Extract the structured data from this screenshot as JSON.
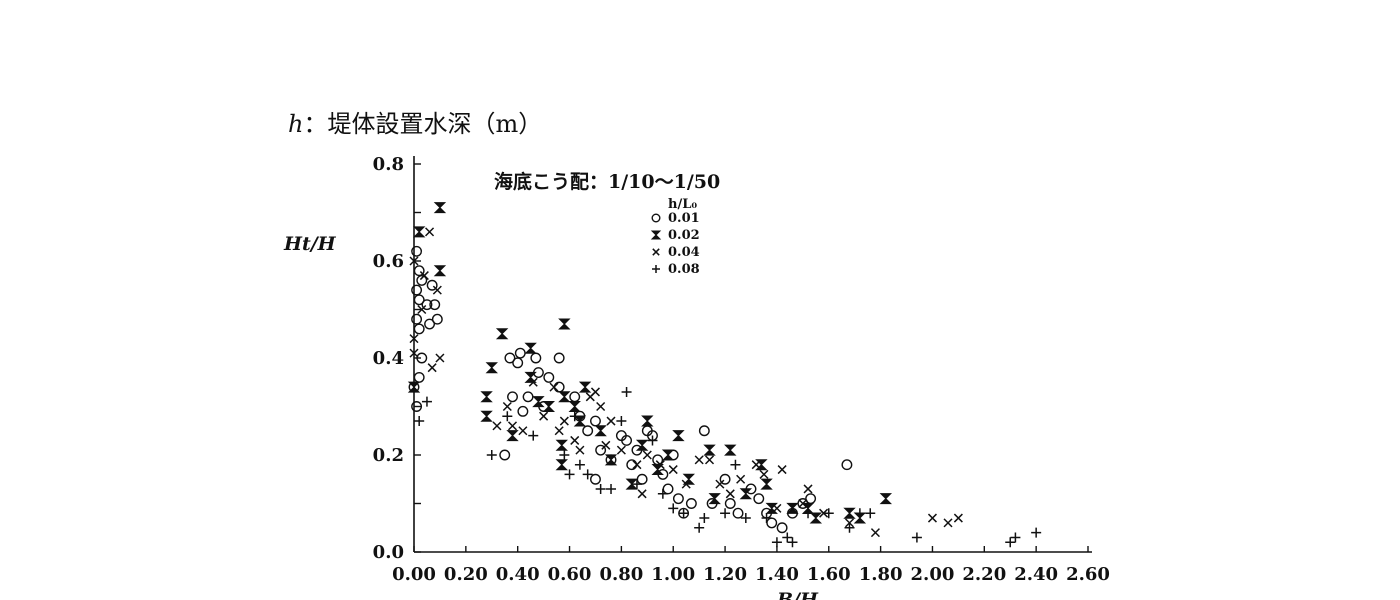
{
  "caption": "ℎ：堤体設置水深（m）",
  "chart_data": {
    "type": "scatter",
    "title": "",
    "ylabel": "Ht/H",
    "xlabel": "B/H",
    "xlim": [
      0,
      2.6
    ],
    "ylim": [
      0,
      0.8
    ],
    "x_ticks": [
      "0.00",
      "0.20",
      "0.40",
      "0.60",
      "0.80",
      "1.00",
      "1.20",
      "1.40",
      "1.60",
      "1.80",
      "2.00",
      "2.20",
      "2.40",
      "2.60"
    ],
    "y_ticks": [
      "0.0",
      "0.2",
      "0.4",
      "0.6",
      "0.8"
    ],
    "annotation": "海底こう配：1/10～1/50",
    "legend_title": "h/L₀",
    "legend_position": "top-center",
    "series": [
      {
        "name": "0.01",
        "marker": "circle",
        "points": [
          [
            0.01,
            0.62
          ],
          [
            0.02,
            0.58
          ],
          [
            0.01,
            0.54
          ],
          [
            0.03,
            0.56
          ],
          [
            0.02,
            0.52
          ],
          [
            0.05,
            0.51
          ],
          [
            0.01,
            0.48
          ],
          [
            0.02,
            0.46
          ],
          [
            0.07,
            0.55
          ],
          [
            0.08,
            0.51
          ],
          [
            0.09,
            0.48
          ],
          [
            0.06,
            0.47
          ],
          [
            0.03,
            0.4
          ],
          [
            0.02,
            0.36
          ],
          [
            0.01,
            0.3
          ],
          [
            0.0,
            0.34
          ],
          [
            0.35,
            0.2
          ],
          [
            0.37,
            0.4
          ],
          [
            0.41,
            0.41
          ],
          [
            0.4,
            0.39
          ],
          [
            0.38,
            0.32
          ],
          [
            0.42,
            0.29
          ],
          [
            0.44,
            0.32
          ],
          [
            0.47,
            0.4
          ],
          [
            0.48,
            0.37
          ],
          [
            0.52,
            0.36
          ],
          [
            0.5,
            0.3
          ],
          [
            0.56,
            0.4
          ],
          [
            0.56,
            0.34
          ],
          [
            0.62,
            0.32
          ],
          [
            0.64,
            0.28
          ],
          [
            0.67,
            0.25
          ],
          [
            0.7,
            0.27
          ],
          [
            0.72,
            0.21
          ],
          [
            0.7,
            0.15
          ],
          [
            0.76,
            0.19
          ],
          [
            0.8,
            0.24
          ],
          [
            0.82,
            0.23
          ],
          [
            0.84,
            0.18
          ],
          [
            0.86,
            0.21
          ],
          [
            0.88,
            0.15
          ],
          [
            0.9,
            0.25
          ],
          [
            0.92,
            0.24
          ],
          [
            0.94,
            0.19
          ],
          [
            0.96,
            0.16
          ],
          [
            0.98,
            0.13
          ],
          [
            1.0,
            0.2
          ],
          [
            1.02,
            0.11
          ],
          [
            1.04,
            0.08
          ],
          [
            1.07,
            0.1
          ],
          [
            1.12,
            0.25
          ],
          [
            1.15,
            0.1
          ],
          [
            1.2,
            0.15
          ],
          [
            1.22,
            0.1
          ],
          [
            1.25,
            0.08
          ],
          [
            1.3,
            0.13
          ],
          [
            1.33,
            0.11
          ],
          [
            1.36,
            0.08
          ],
          [
            1.38,
            0.06
          ],
          [
            1.42,
            0.05
          ],
          [
            1.46,
            0.08
          ],
          [
            1.5,
            0.1
          ],
          [
            1.53,
            0.11
          ],
          [
            1.67,
            0.18
          ]
        ]
      },
      {
        "name": "0.02",
        "marker": "hourglass",
        "points": [
          [
            0.1,
            0.71
          ],
          [
            0.02,
            0.66
          ],
          [
            0.1,
            0.58
          ],
          [
            0.0,
            0.34
          ],
          [
            0.34,
            0.45
          ],
          [
            0.3,
            0.38
          ],
          [
            0.28,
            0.32
          ],
          [
            0.28,
            0.28
          ],
          [
            0.38,
            0.24
          ],
          [
            0.45,
            0.42
          ],
          [
            0.45,
            0.36
          ],
          [
            0.48,
            0.31
          ],
          [
            0.52,
            0.3
          ],
          [
            0.58,
            0.47
          ],
          [
            0.58,
            0.32
          ],
          [
            0.57,
            0.22
          ],
          [
            0.57,
            0.18
          ],
          [
            0.62,
            0.3
          ],
          [
            0.64,
            0.27
          ],
          [
            0.66,
            0.34
          ],
          [
            0.72,
            0.25
          ],
          [
            0.76,
            0.19
          ],
          [
            0.84,
            0.14
          ],
          [
            0.88,
            0.22
          ],
          [
            0.9,
            0.27
          ],
          [
            0.98,
            0.2
          ],
          [
            0.94,
            0.17
          ],
          [
            1.02,
            0.24
          ],
          [
            1.06,
            0.15
          ],
          [
            1.14,
            0.21
          ],
          [
            1.22,
            0.21
          ],
          [
            1.16,
            0.11
          ],
          [
            1.28,
            0.12
          ],
          [
            1.34,
            0.18
          ],
          [
            1.36,
            0.14
          ],
          [
            1.38,
            0.09
          ],
          [
            1.46,
            0.09
          ],
          [
            1.52,
            0.09
          ],
          [
            1.55,
            0.07
          ],
          [
            1.68,
            0.08
          ],
          [
            1.72,
            0.07
          ],
          [
            1.82,
            0.11
          ]
        ]
      },
      {
        "name": "0.04",
        "marker": "x",
        "points": [
          [
            0.0,
            0.6
          ],
          [
            0.06,
            0.66
          ],
          [
            0.04,
            0.57
          ],
          [
            0.09,
            0.54
          ],
          [
            0.03,
            0.5
          ],
          [
            0.0,
            0.44
          ],
          [
            0.07,
            0.38
          ],
          [
            0.1,
            0.4
          ],
          [
            0.0,
            0.41
          ],
          [
            0.32,
            0.26
          ],
          [
            0.36,
            0.3
          ],
          [
            0.38,
            0.26
          ],
          [
            0.42,
            0.25
          ],
          [
            0.46,
            0.35
          ],
          [
            0.5,
            0.28
          ],
          [
            0.54,
            0.34
          ],
          [
            0.56,
            0.25
          ],
          [
            0.58,
            0.27
          ],
          [
            0.62,
            0.23
          ],
          [
            0.64,
            0.21
          ],
          [
            0.68,
            0.32
          ],
          [
            0.7,
            0.33
          ],
          [
            0.72,
            0.3
          ],
          [
            0.74,
            0.22
          ],
          [
            0.76,
            0.27
          ],
          [
            0.8,
            0.21
          ],
          [
            0.86,
            0.18
          ],
          [
            0.88,
            0.12
          ],
          [
            0.9,
            0.2
          ],
          [
            0.95,
            0.18
          ],
          [
            1.0,
            0.17
          ],
          [
            1.05,
            0.14
          ],
          [
            1.1,
            0.19
          ],
          [
            1.14,
            0.19
          ],
          [
            1.18,
            0.14
          ],
          [
            1.22,
            0.12
          ],
          [
            1.26,
            0.15
          ],
          [
            1.32,
            0.18
          ],
          [
            1.35,
            0.16
          ],
          [
            1.4,
            0.09
          ],
          [
            1.42,
            0.17
          ],
          [
            1.5,
            0.1
          ],
          [
            1.52,
            0.13
          ],
          [
            1.58,
            0.08
          ],
          [
            1.68,
            0.06
          ],
          [
            1.78,
            0.04
          ],
          [
            2.0,
            0.07
          ],
          [
            2.06,
            0.06
          ],
          [
            2.1,
            0.07
          ]
        ]
      },
      {
        "name": "0.08",
        "marker": "plus",
        "points": [
          [
            0.05,
            0.31
          ],
          [
            0.02,
            0.27
          ],
          [
            0.3,
            0.2
          ],
          [
            0.36,
            0.28
          ],
          [
            0.46,
            0.24
          ],
          [
            0.58,
            0.2
          ],
          [
            0.6,
            0.16
          ],
          [
            0.62,
            0.28
          ],
          [
            0.64,
            0.18
          ],
          [
            0.67,
            0.16
          ],
          [
            0.72,
            0.13
          ],
          [
            0.76,
            0.13
          ],
          [
            0.8,
            0.27
          ],
          [
            0.82,
            0.33
          ],
          [
            0.86,
            0.14
          ],
          [
            0.92,
            0.23
          ],
          [
            0.96,
            0.12
          ],
          [
            1.0,
            0.09
          ],
          [
            1.04,
            0.08
          ],
          [
            1.1,
            0.05
          ],
          [
            1.12,
            0.07
          ],
          [
            1.2,
            0.08
          ],
          [
            1.24,
            0.18
          ],
          [
            1.28,
            0.07
          ],
          [
            1.36,
            0.07
          ],
          [
            1.4,
            0.02
          ],
          [
            1.44,
            0.03
          ],
          [
            1.46,
            0.02
          ],
          [
            1.52,
            0.08
          ],
          [
            1.6,
            0.08
          ],
          [
            1.68,
            0.05
          ],
          [
            1.72,
            0.08
          ],
          [
            1.76,
            0.08
          ],
          [
            1.94,
            0.03
          ],
          [
            2.3,
            0.02
          ],
          [
            2.32,
            0.03
          ],
          [
            2.4,
            0.04
          ]
        ]
      }
    ]
  }
}
